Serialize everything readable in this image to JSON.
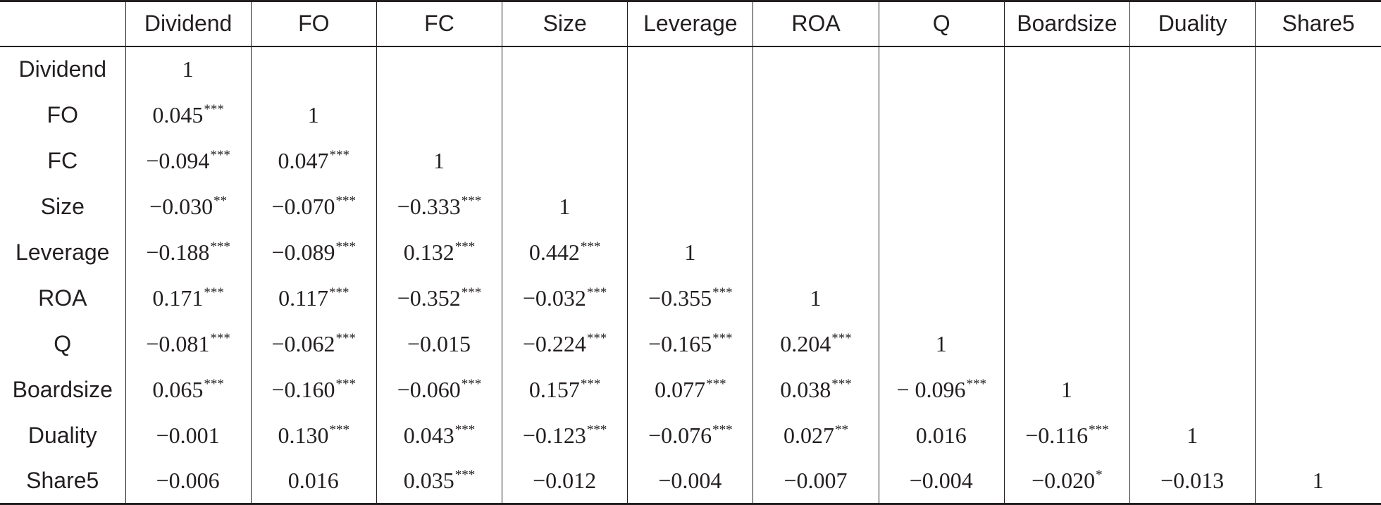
{
  "table": {
    "columns": [
      "",
      "Dividend",
      "FO",
      "FC",
      "Size",
      "Leverage",
      "ROA",
      "Q",
      "Boardsize",
      "Duality",
      "Share5"
    ],
    "rows": [
      {
        "label": "Dividend",
        "cells": [
          {
            "v": "1",
            "s": ""
          },
          {
            "v": "",
            "s": ""
          },
          {
            "v": "",
            "s": ""
          },
          {
            "v": "",
            "s": ""
          },
          {
            "v": "",
            "s": ""
          },
          {
            "v": "",
            "s": ""
          },
          {
            "v": "",
            "s": ""
          },
          {
            "v": "",
            "s": ""
          },
          {
            "v": "",
            "s": ""
          },
          {
            "v": "",
            "s": ""
          }
        ]
      },
      {
        "label": "FO",
        "cells": [
          {
            "v": "0.045",
            "s": "***"
          },
          {
            "v": "1",
            "s": ""
          },
          {
            "v": "",
            "s": ""
          },
          {
            "v": "",
            "s": ""
          },
          {
            "v": "",
            "s": ""
          },
          {
            "v": "",
            "s": ""
          },
          {
            "v": "",
            "s": ""
          },
          {
            "v": "",
            "s": ""
          },
          {
            "v": "",
            "s": ""
          },
          {
            "v": "",
            "s": ""
          }
        ]
      },
      {
        "label": "FC",
        "cells": [
          {
            "v": "−0.094",
            "s": "***"
          },
          {
            "v": "0.047",
            "s": "***"
          },
          {
            "v": "1",
            "s": ""
          },
          {
            "v": "",
            "s": ""
          },
          {
            "v": "",
            "s": ""
          },
          {
            "v": "",
            "s": ""
          },
          {
            "v": "",
            "s": ""
          },
          {
            "v": "",
            "s": ""
          },
          {
            "v": "",
            "s": ""
          },
          {
            "v": "",
            "s": ""
          }
        ]
      },
      {
        "label": "Size",
        "cells": [
          {
            "v": "−0.030",
            "s": "**"
          },
          {
            "v": "−0.070",
            "s": "***"
          },
          {
            "v": "−0.333",
            "s": "***"
          },
          {
            "v": "1",
            "s": ""
          },
          {
            "v": "",
            "s": ""
          },
          {
            "v": "",
            "s": ""
          },
          {
            "v": "",
            "s": ""
          },
          {
            "v": "",
            "s": ""
          },
          {
            "v": "",
            "s": ""
          },
          {
            "v": "",
            "s": ""
          }
        ]
      },
      {
        "label": "Leverage",
        "cells": [
          {
            "v": "−0.188",
            "s": "***"
          },
          {
            "v": "−0.089",
            "s": "***"
          },
          {
            "v": "0.132",
            "s": "***"
          },
          {
            "v": "0.442",
            "s": "***"
          },
          {
            "v": "1",
            "s": ""
          },
          {
            "v": "",
            "s": ""
          },
          {
            "v": "",
            "s": ""
          },
          {
            "v": "",
            "s": ""
          },
          {
            "v": "",
            "s": ""
          },
          {
            "v": "",
            "s": ""
          }
        ]
      },
      {
        "label": "ROA",
        "cells": [
          {
            "v": "0.171",
            "s": "***"
          },
          {
            "v": "0.117",
            "s": "***"
          },
          {
            "v": "−0.352",
            "s": "***"
          },
          {
            "v": "−0.032",
            "s": "***"
          },
          {
            "v": "−0.355",
            "s": "***"
          },
          {
            "v": "1",
            "s": ""
          },
          {
            "v": "",
            "s": ""
          },
          {
            "v": "",
            "s": ""
          },
          {
            "v": "",
            "s": ""
          },
          {
            "v": "",
            "s": ""
          }
        ]
      },
      {
        "label": "Q",
        "cells": [
          {
            "v": "−0.081",
            "s": "***"
          },
          {
            "v": "−0.062",
            "s": "***"
          },
          {
            "v": "−0.015",
            "s": ""
          },
          {
            "v": "−0.224",
            "s": "***"
          },
          {
            "v": "−0.165",
            "s": "***"
          },
          {
            "v": "0.204",
            "s": "***"
          },
          {
            "v": "1",
            "s": ""
          },
          {
            "v": "",
            "s": ""
          },
          {
            "v": "",
            "s": ""
          },
          {
            "v": "",
            "s": ""
          }
        ]
      },
      {
        "label": "Boardsize",
        "cells": [
          {
            "v": "0.065",
            "s": "***"
          },
          {
            "v": "−0.160",
            "s": "***"
          },
          {
            "v": "−0.060",
            "s": "***"
          },
          {
            "v": "0.157",
            "s": "***"
          },
          {
            "v": "0.077",
            "s": "***"
          },
          {
            "v": "0.038",
            "s": "***"
          },
          {
            "v": "− 0.096",
            "s": "***"
          },
          {
            "v": "1",
            "s": ""
          },
          {
            "v": "",
            "s": ""
          },
          {
            "v": "",
            "s": ""
          }
        ]
      },
      {
        "label": "Duality",
        "cells": [
          {
            "v": "−0.001",
            "s": ""
          },
          {
            "v": "0.130",
            "s": "***"
          },
          {
            "v": "0.043",
            "s": "***"
          },
          {
            "v": "−0.123",
            "s": "***"
          },
          {
            "v": "−0.076",
            "s": "***"
          },
          {
            "v": "0.027",
            "s": "**"
          },
          {
            "v": "0.016",
            "s": ""
          },
          {
            "v": "−0.116",
            "s": "***"
          },
          {
            "v": "1",
            "s": ""
          },
          {
            "v": "",
            "s": ""
          }
        ]
      },
      {
        "label": "Share5",
        "cells": [
          {
            "v": "−0.006",
            "s": ""
          },
          {
            "v": "0.016",
            "s": ""
          },
          {
            "v": "0.035",
            "s": "***"
          },
          {
            "v": "−0.012",
            "s": ""
          },
          {
            "v": "−0.004",
            "s": ""
          },
          {
            "v": "−0.007",
            "s": ""
          },
          {
            "v": "−0.004",
            "s": ""
          },
          {
            "v": "−0.020",
            "s": "*"
          },
          {
            "v": "−0.013",
            "s": ""
          },
          {
            "v": "1",
            "s": ""
          }
        ]
      }
    ]
  }
}
